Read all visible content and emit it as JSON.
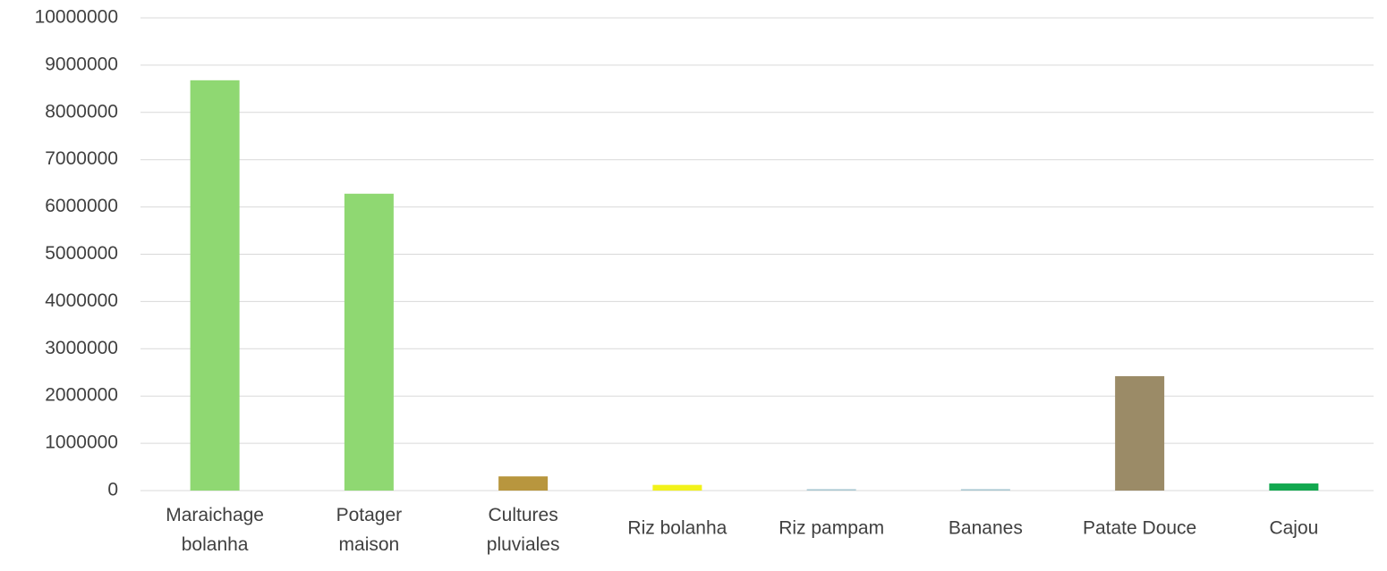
{
  "chart_data": {
    "type": "bar",
    "categories": [
      "Maraichage bolanha",
      "Potager maison",
      "Cultures pluviales",
      "Riz bolanha",
      "Riz pampam",
      "Bananes",
      "Patate Douce",
      "Cajou"
    ],
    "values": [
      8680000,
      6280000,
      300000,
      120000,
      30000,
      30000,
      2420000,
      150000
    ],
    "colors": [
      "#8fd872",
      "#8fd872",
      "#b8963e",
      "#f2f21a",
      "#a9c8d2",
      "#a9c8d2",
      "#9b8b67",
      "#12a84f"
    ],
    "ylim": [
      0,
      10000000
    ],
    "yticks": [
      0,
      1000000,
      2000000,
      3000000,
      4000000,
      5000000,
      6000000,
      7000000,
      8000000,
      9000000,
      10000000
    ],
    "grid": true
  }
}
